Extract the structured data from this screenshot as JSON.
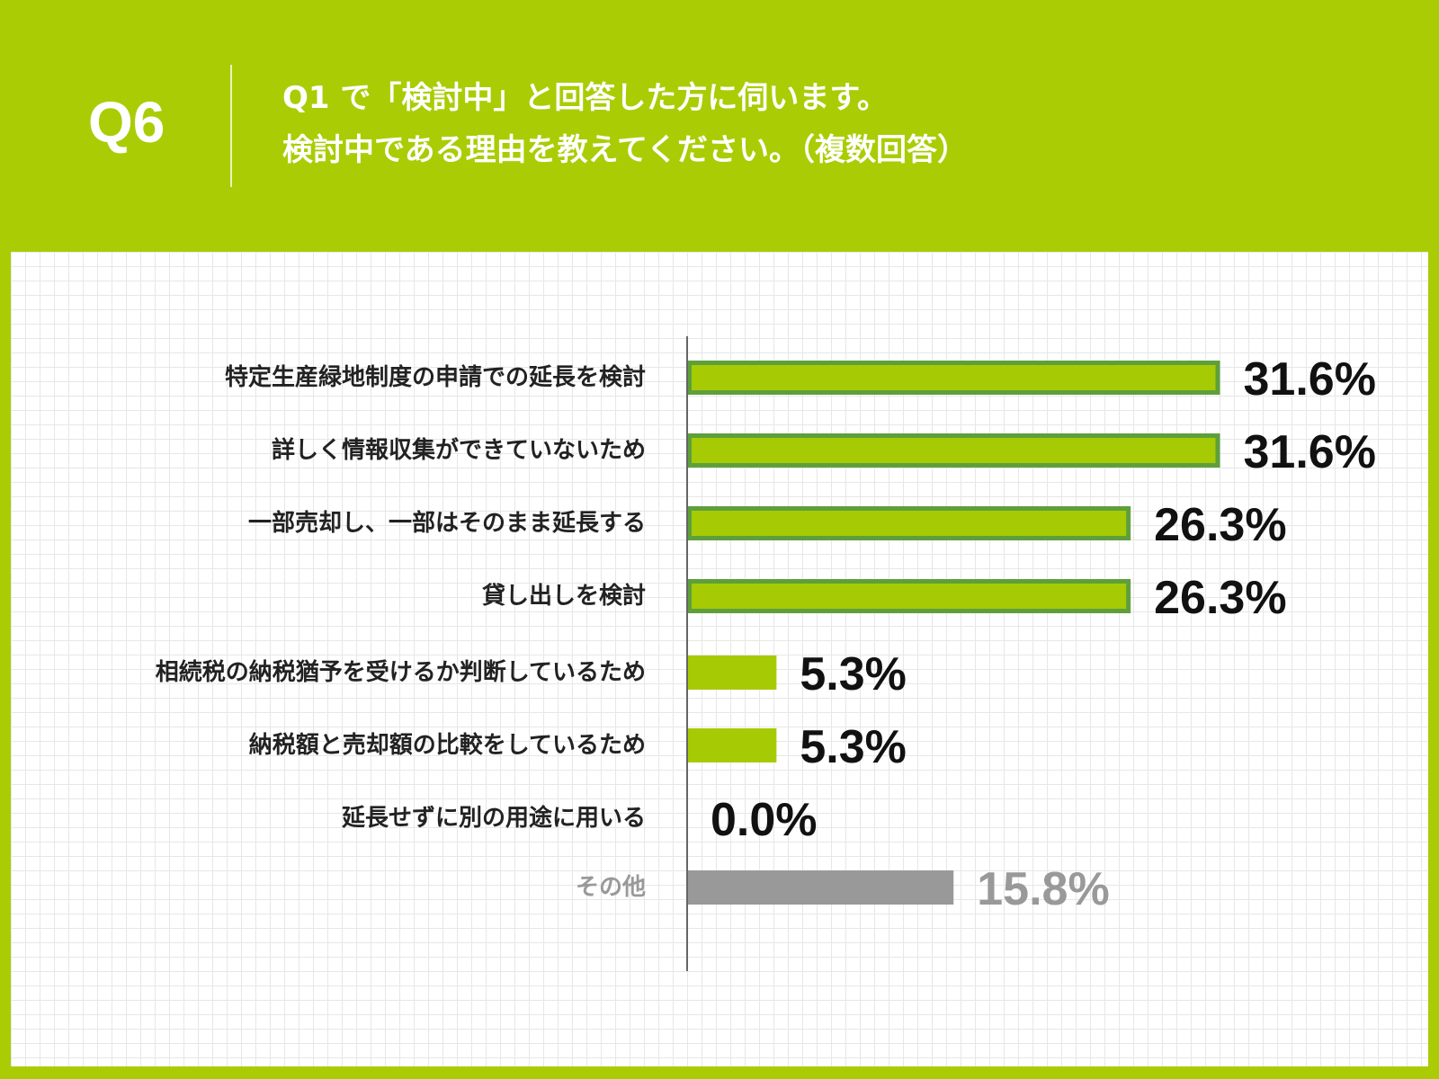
{
  "header": {
    "question_number": "Q6",
    "question_line_1": "Q1 で「検討中」と回答した方に伺います。",
    "question_line_2": "検討中である理由を教えてください。（複数回答）"
  },
  "colors": {
    "background": "#aacc05",
    "bar_fill": "#a6cb05",
    "bar_outline": "#5e9f3b",
    "bar_other": "#999999",
    "label_text": "#222222",
    "value_text": "#111111",
    "other_text": "#999999",
    "axis": "#666666"
  },
  "chart_data": {
    "type": "bar",
    "orientation": "horizontal",
    "categories": [
      "特定生産緑地制度の申請での延長を検討",
      "詳しく情報収集ができていないため",
      "一部売却し、一部はそのまま延長する",
      "貸し出しを検討",
      "相続税の納税猶予を受けるか判断しているため",
      "納税額と売却額の比較をしているため",
      "延長せずに別の用途に用いる",
      "その他"
    ],
    "values": [
      31.6,
      31.6,
      26.3,
      26.3,
      5.3,
      5.3,
      0.0,
      15.8
    ],
    "value_labels": [
      "31.6%",
      "31.6%",
      "26.3%",
      "26.3%",
      "5.3%",
      "5.3%",
      "0.0%",
      "15.8%"
    ],
    "unit": "%",
    "grid": true,
    "legend": false
  }
}
